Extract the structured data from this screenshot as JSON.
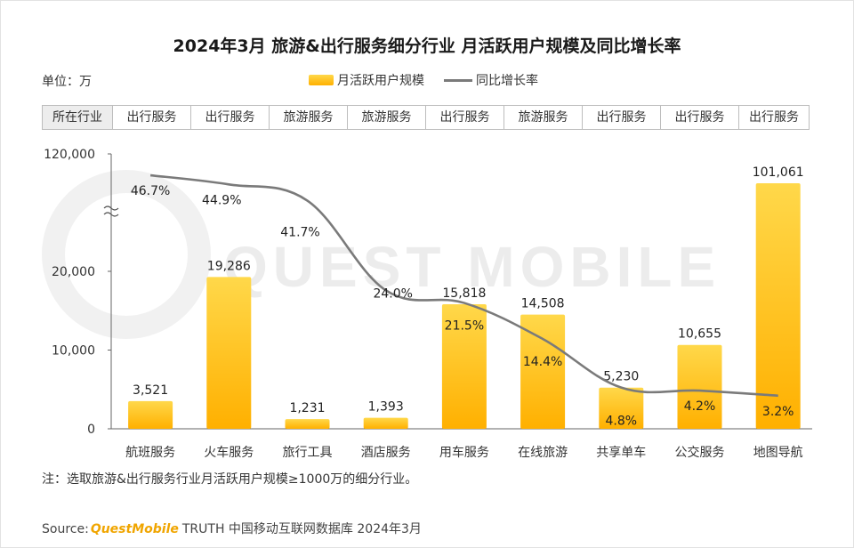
{
  "title": "2024年3月 旅游&出行服务细分行业 月活跃用户规模及同比增长率",
  "unit_label": "单位：万",
  "legend": {
    "bar_label": "月活跃用户规模",
    "line_label": "同比增长率"
  },
  "category_row": {
    "header": "所在行业",
    "items": [
      "出行服务",
      "出行服务",
      "旅游服务",
      "旅游服务",
      "出行服务",
      "旅游服务",
      "出行服务",
      "出行服务",
      "出行服务"
    ]
  },
  "note": "注：选取旅游&出行服务行业月活跃用户规模≥1000万的细分行业。",
  "source": {
    "prefix": "Source:",
    "brand": "QuestMobile",
    "text": "TRUTH 中国移动互联网数据库 2024年3月"
  },
  "watermark": "QUEST MOBILE",
  "colors": {
    "bar_top": "#ffd84a",
    "bar_bottom": "#ffb000",
    "line": "#7a7a7a"
  },
  "chart_data": {
    "type": "bar",
    "categories": [
      "航班服务",
      "火车服务",
      "旅行工具",
      "酒店服务",
      "用车服务",
      "在线旅游",
      "共享单车",
      "公交服务",
      "地图导航"
    ],
    "series": [
      {
        "name": "月活跃用户规模",
        "type": "bar",
        "values": [
          3521,
          19286,
          1231,
          1393,
          15818,
          14508,
          5230,
          10655,
          101061
        ],
        "labels": [
          "3,521",
          "19,286",
          "1,231",
          "1,393",
          "15,818",
          "14,508",
          "5,230",
          "10,655",
          "101,061"
        ]
      },
      {
        "name": "同比增长率",
        "type": "line",
        "values": [
          46.7,
          44.9,
          41.7,
          24.0,
          21.5,
          14.4,
          4.8,
          4.2,
          3.2
        ],
        "labels": [
          "46.7%",
          "44.9%",
          "41.7%",
          "24.0%",
          "21.5%",
          "14.4%",
          "4.8%",
          "4.2%",
          "3.2%"
        ]
      }
    ],
    "y_axis": {
      "ticks": [
        0,
        10000,
        20000,
        120000
      ],
      "tick_labels": [
        "0",
        "10,000",
        "20,000",
        "120,000"
      ],
      "broken": true,
      "break_between": [
        20000,
        120000
      ]
    },
    "grid": false
  }
}
